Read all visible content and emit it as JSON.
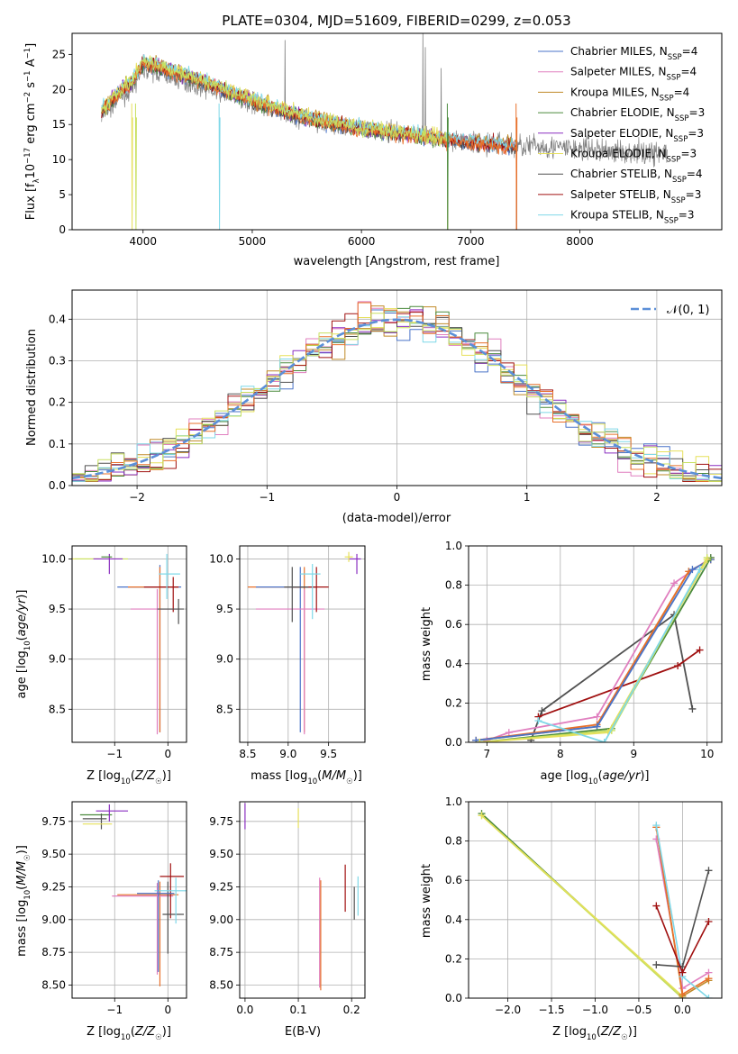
{
  "figure_title": "PLATE=0304, MJD=51609, FIBERID=0299, z=0.053",
  "colors": {
    "chabrier_miles": "#4a73c8",
    "salpeter_miles": "#e07fbf",
    "kroupa_miles": "#c08a28",
    "chabrier_elodie": "#4a8a3c",
    "salpeter_elodie": "#8a2fc0",
    "kroupa_elodie": "#e6e05a",
    "chabrier_stelib": "#505050",
    "salpeter_stelib": "#a01010",
    "kroupa_stelib": "#7fd8e8",
    "orange": "#e8702a",
    "lime": "#c8e060",
    "data_gray": "#808080",
    "normal_curve": "#5b8fd8"
  },
  "chart_data": [
    {
      "id": "spectrum",
      "type": "line",
      "title": "PLATE=0304, MJD=51609, FIBERID=0299, z=0.053",
      "xlabel": "wavelength [Angstrom, rest frame]",
      "ylabel": "Flux [f_λ10^-17 erg cm^-2 s^-1 A^-1]",
      "xlim": [
        3350,
        9300
      ],
      "ylim": [
        0,
        28
      ],
      "xticks": [
        4000,
        5000,
        6000,
        7000,
        8000
      ],
      "yticks": [
        0,
        5,
        10,
        15,
        20,
        25
      ],
      "grid": false,
      "legend": "top-right",
      "legend_entries": [
        "Chabrier MILES, N_SSP=4",
        "Salpeter MILES, N_SSP=4",
        "Kroupa MILES, N_SSP=4",
        "Chabrier ELODIE, N_SSP=3",
        "Salpeter ELODIE, N_SSP=3",
        "Kroupa ELODIE, N_SSP=3",
        "Chabrier STELIB, N_SSP=4",
        "Salpeter STELIB, N_SSP=3",
        "Kroupa STELIB, N_SSP=3"
      ],
      "data_continuum": {
        "x": [
          3620,
          3800,
          3900,
          4000,
          4200,
          4500,
          5000,
          5500,
          6000,
          6500,
          7000,
          7500,
          8000,
          8500,
          8800
        ],
        "y": [
          16,
          19,
          20,
          23,
          22,
          20.5,
          18,
          15.5,
          14.5,
          13.5,
          12.5,
          12,
          11.5,
          11,
          11
        ]
      },
      "model_continuum": {
        "x": [
          3620,
          3800,
          3900,
          4000,
          4200,
          4500,
          5000,
          5500,
          6000,
          6500,
          7000,
          7400
        ],
        "y": [
          17,
          20,
          21,
          24,
          23,
          21.5,
          18.5,
          16,
          14.5,
          13.5,
          12.5,
          12
        ]
      }
    },
    {
      "id": "residual_hist",
      "type": "line",
      "xlabel": "(data-model)/error",
      "ylabel": "Normed distribution",
      "xlim": [
        -2.5,
        2.5
      ],
      "ylim": [
        0,
        0.47
      ],
      "xticks": [
        -2,
        -1,
        0,
        1,
        2
      ],
      "yticks": [
        0.0,
        0.1,
        0.2,
        0.3,
        0.4
      ],
      "grid": true,
      "legend": "top-right",
      "legend_entries": [
        "N(0,1)"
      ],
      "series_name": "N(0,1)"
    },
    {
      "id": "age_vs_Z",
      "type": "scatter",
      "xlabel": "Z [log10(Z/Z☉)]",
      "ylabel": "age [log10(age/yr)]",
      "xlim": [
        -1.8,
        0.35
      ],
      "ylim": [
        8.17,
        10.13
      ],
      "xticks": [
        -1,
        0
      ],
      "yticks": [
        8.5,
        9.0,
        9.5,
        10.0
      ],
      "grid": true
    },
    {
      "id": "age_vs_mass",
      "type": "scatter",
      "xlabel": "mass [log10(M/M☉)]",
      "ylabel": "",
      "xlim": [
        8.4,
        9.95
      ],
      "ylim": [
        8.17,
        10.13
      ],
      "xticks": [
        8.5,
        9.0,
        9.5
      ],
      "yticks": [
        8.5,
        9.0,
        9.5,
        10.0
      ],
      "grid": true
    },
    {
      "id": "weight_vs_age",
      "type": "line",
      "xlabel": "age [log10(age/yr)]",
      "ylabel": "mass weight",
      "xlim": [
        6.75,
        10.2
      ],
      "ylim": [
        0.0,
        1.0
      ],
      "xticks": [
        7,
        8,
        9,
        10
      ],
      "yticks": [
        0.0,
        0.2,
        0.4,
        0.6,
        0.8,
        1.0
      ],
      "grid": true,
      "series": [
        {
          "color": "chabrier_stelib",
          "x": [
            7.6,
            7.75,
            9.55,
            9.8
          ],
          "y": [
            0.01,
            0.16,
            0.65,
            0.17
          ]
        },
        {
          "color": "salpeter_stelib",
          "x": [
            7.7,
            9.6,
            9.9
          ],
          "y": [
            0.13,
            0.39,
            0.47
          ]
        },
        {
          "color": "salpeter_miles",
          "x": [
            7.0,
            7.3,
            8.5,
            9.55,
            10.05
          ],
          "y": [
            0.01,
            0.05,
            0.13,
            0.81,
            0.94
          ]
        },
        {
          "color": "kroupa_miles",
          "x": [
            6.85,
            8.5,
            9.75,
            10.05
          ],
          "y": [
            0.01,
            0.08,
            0.87,
            0.93
          ]
        },
        {
          "color": "orange",
          "x": [
            6.85,
            8.5,
            9.75,
            10.05
          ],
          "y": [
            0.01,
            0.09,
            0.87,
            0.93
          ]
        },
        {
          "color": "chabrier_miles",
          "x": [
            6.85,
            8.5,
            9.8,
            10.05
          ],
          "y": [
            0.01,
            0.08,
            0.88,
            0.93
          ]
        },
        {
          "color": "chabrier_elodie",
          "x": [
            6.9,
            8.7,
            10.05
          ],
          "y": [
            0.0,
            0.07,
            0.94
          ]
        },
        {
          "color": "lime",
          "x": [
            6.9,
            8.7,
            10.0
          ],
          "y": [
            0.0,
            0.06,
            0.94
          ]
        },
        {
          "color": "kroupa_elodie",
          "x": [
            6.9,
            8.65,
            10.0
          ],
          "y": [
            0.0,
            0.05,
            0.93
          ]
        },
        {
          "color": "kroupa_stelib",
          "x": [
            7.7,
            8.6,
            9.9
          ],
          "y": [
            0.11,
            0.0,
            0.88
          ]
        }
      ]
    },
    {
      "id": "mass_vs_Z",
      "type": "scatter",
      "xlabel": "Z [log10(Z/Z☉)]",
      "ylabel": "mass [log10(M/M☉)]",
      "xlim": [
        -1.8,
        0.35
      ],
      "ylim": [
        8.4,
        9.9
      ],
      "xticks": [
        -1,
        0
      ],
      "yticks": [
        8.5,
        8.75,
        9.0,
        9.25,
        9.5,
        9.75
      ],
      "grid": true
    },
    {
      "id": "mass_vs_ebv",
      "type": "scatter",
      "xlabel": "E(B-V)",
      "ylabel": "",
      "xlim": [
        -0.01,
        0.225
      ],
      "ylim": [
        8.4,
        9.9
      ],
      "xticks": [
        0.0,
        0.1,
        0.2
      ],
      "yticks": [
        8.5,
        8.75,
        9.0,
        9.25,
        9.5,
        9.75
      ],
      "grid": true
    },
    {
      "id": "weight_vs_Z",
      "type": "line",
      "xlabel": "Z [log10(Z/Z☉)]",
      "ylabel": "mass weight",
      "xlim": [
        -2.45,
        0.45
      ],
      "ylim": [
        0.0,
        1.0
      ],
      "xticks": [
        -2.0,
        -1.5,
        -1.0,
        -0.5,
        0.0
      ],
      "yticks": [
        0.0,
        0.2,
        0.4,
        0.6,
        0.8,
        1.0
      ],
      "grid": true,
      "series": [
        {
          "color": "chabrier_elodie",
          "x": [
            -2.3,
            0.0
          ],
          "y": [
            0.94,
            0.0
          ]
        },
        {
          "color": "lime",
          "x": [
            -2.3,
            0.0
          ],
          "y": [
            0.93,
            0.0
          ]
        },
        {
          "color": "kroupa_elodie",
          "x": [
            -2.3,
            0.0
          ],
          "y": [
            0.93,
            0.01
          ]
        },
        {
          "color": "salpeter_miles",
          "x": [
            -0.3,
            0.0,
            0.3
          ],
          "y": [
            0.81,
            0.05,
            0.13
          ]
        },
        {
          "color": "kroupa_miles",
          "x": [
            -0.3,
            0.0,
            0.3
          ],
          "y": [
            0.87,
            0.01,
            0.09
          ]
        },
        {
          "color": "orange",
          "x": [
            -0.3,
            0.0,
            0.3
          ],
          "y": [
            0.87,
            0.02,
            0.1
          ]
        },
        {
          "color": "kroupa_stelib",
          "x": [
            -0.3,
            0.0,
            0.3
          ],
          "y": [
            0.88,
            0.11,
            0.0
          ]
        },
        {
          "color": "chabrier_stelib",
          "x": [
            -0.3,
            0.0,
            0.3
          ],
          "y": [
            0.17,
            0.16,
            0.65
          ]
        },
        {
          "color": "salpeter_stelib",
          "x": [
            -0.3,
            0.0,
            0.3
          ],
          "y": [
            0.47,
            0.13,
            0.39
          ]
        }
      ]
    }
  ]
}
